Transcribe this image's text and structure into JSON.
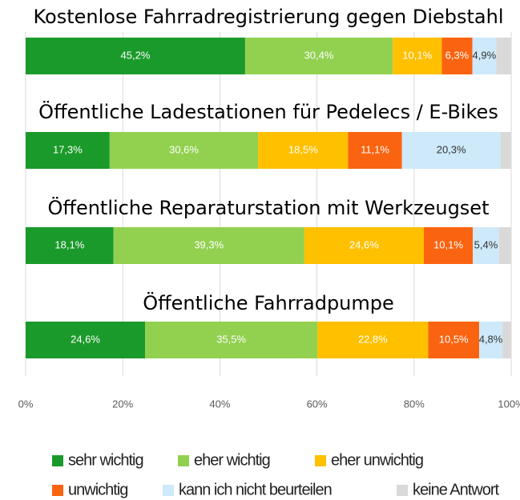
{
  "chart_data": {
    "type": "stacked-bar-horizontal",
    "categories": [
      "Kostenlose Fahrradregistrierung gegen Diebstahl",
      "Öffentliche Ladestationen für Pedelecs / E-Bikes",
      "Öffentliche Reparaturstation mit Werkzeugset",
      "Öffentliche Fahrradpumpe"
    ],
    "series": [
      {
        "name": "sehr wichtig",
        "color": "#1a9a2a",
        "values": [
          45.2,
          17.3,
          18.1,
          24.6
        ],
        "value_labels": [
          "45,2%",
          "17,3%",
          "18,1%",
          "24,6%"
        ]
      },
      {
        "name": "eher wichtig",
        "color": "#92d050",
        "values": [
          30.4,
          30.6,
          39.3,
          35.5
        ],
        "value_labels": [
          "30,4%",
          "30,6%",
          "39,3%",
          "35,5%"
        ]
      },
      {
        "name": "eher unwichtig",
        "color": "#ffc000",
        "values": [
          10.1,
          18.5,
          24.6,
          22.8
        ],
        "value_labels": [
          "10,1%",
          "18,5%",
          "24,6%",
          "22,8%"
        ]
      },
      {
        "name": "unwichtig",
        "color": "#fa6410",
        "values": [
          6.3,
          11.1,
          10.1,
          10.5
        ],
        "value_labels": [
          "6,3%",
          "11,1%",
          "10,1%",
          "10,5%"
        ]
      },
      {
        "name": "kann ich nicht beurteilen",
        "color": "#cde9fa",
        "values": [
          4.9,
          20.3,
          5.4,
          4.8
        ],
        "value_labels": [
          "4,9%",
          "20,3%",
          "5,4%",
          "4,8%"
        ]
      },
      {
        "name": "keine Antwort",
        "color": "#d9d9d9",
        "values": [
          3.1,
          2.2,
          2.5,
          1.8
        ],
        "value_labels": [
          null,
          null,
          null,
          null
        ]
      }
    ],
    "xlim": [
      0,
      100
    ],
    "xticks": [
      {
        "value": 0,
        "label": "0%"
      },
      {
        "value": 20,
        "label": "20%"
      },
      {
        "value": 40,
        "label": "40%"
      },
      {
        "value": 60,
        "label": "60%"
      },
      {
        "value": 80,
        "label": "80%"
      },
      {
        "value": 100,
        "label": "100%"
      }
    ],
    "grid": true,
    "legend": "bottom"
  }
}
